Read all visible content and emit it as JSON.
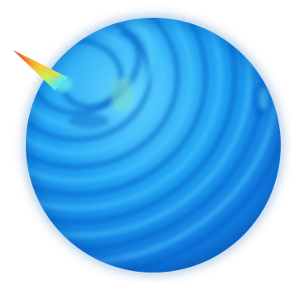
{
  "figure": {
    "subject": "rippled-sphere",
    "colormap": [
      "#1e6fd8",
      "#1f9bf0",
      "#2fc4f6",
      "#5fe8e8",
      "#c8f05a",
      "#f6c93a",
      "#f07a2a",
      "#d8352a"
    ],
    "base_color": "#1c9cf0",
    "shadow_color": "#0b55b8",
    "highlight_color": "#5fd4ff",
    "background": "#ffffff"
  }
}
